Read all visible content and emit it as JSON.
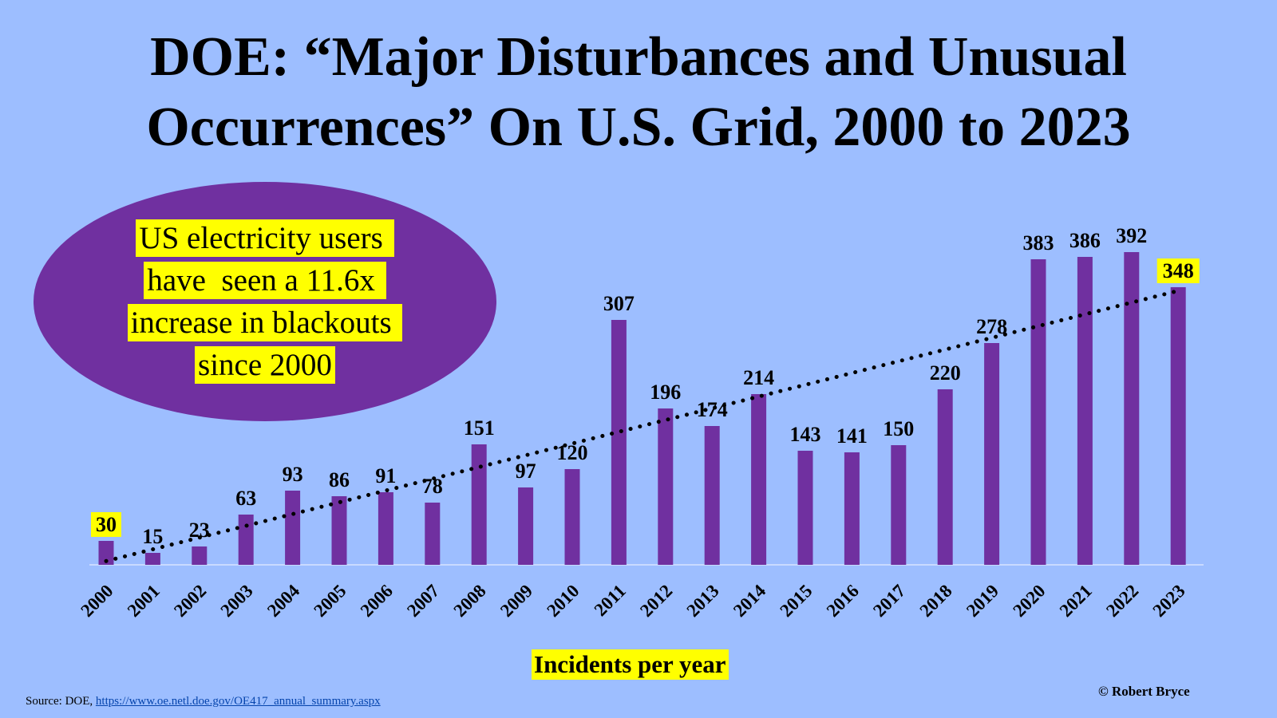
{
  "header": {
    "title_line1": "DOE: “Major Disturbances and Unusual",
    "title_line2": "Occurrences” On U.S. Grid, 2000 to 2023"
  },
  "callout": {
    "lines": [
      "US electricity users ",
      "have  seen a 11.6x ",
      "increase in blackouts ",
      "since 2000"
    ]
  },
  "footer": {
    "source_prefix": "Source: DOE, ",
    "source_link": "https://www.oe.netl.doe.gov/OE417_annual_summary.aspx",
    "credit": "© Robert Bryce"
  },
  "colors": {
    "background": "#9DBEFF",
    "bar": "#7030A0",
    "callout_fill": "#7030A0",
    "highlight": "#FFFF00",
    "trendline": "#000000"
  },
  "chart_data": {
    "type": "bar",
    "categories": [
      "2000",
      "2001",
      "2002",
      "2003",
      "2004",
      "2005",
      "2006",
      "2007",
      "2008",
      "2009",
      "2010",
      "2011",
      "2012",
      "2013",
      "2014",
      "2015",
      "2016",
      "2017",
      "2018",
      "2019",
      "2020",
      "2021",
      "2022",
      "2023"
    ],
    "series": [
      {
        "values": [
          30,
          15,
          23,
          63,
          93,
          86,
          91,
          78,
          151,
          97,
          120,
          307,
          196,
          174,
          214,
          143,
          141,
          150,
          220,
          278,
          383,
          386,
          392,
          348
        ]
      }
    ],
    "data_labels": [
      "30",
      "15",
      "23",
      "63",
      "93",
      "86",
      "91",
      "78",
      "151",
      "97",
      "120",
      "307",
      "196",
      "174",
      "214",
      "143",
      "141",
      "150",
      "220",
      "278",
      "383",
      "386",
      "392",
      "348"
    ],
    "highlighted_labels": [
      "2000",
      "2023"
    ],
    "trendline": {
      "type": "linear",
      "style": "dotted"
    },
    "xlabel": "Incidents per year",
    "ylabel": "",
    "ylim": [
      0,
      400
    ],
    "yaxis_visible": false,
    "grid": false,
    "legend": "none"
  }
}
